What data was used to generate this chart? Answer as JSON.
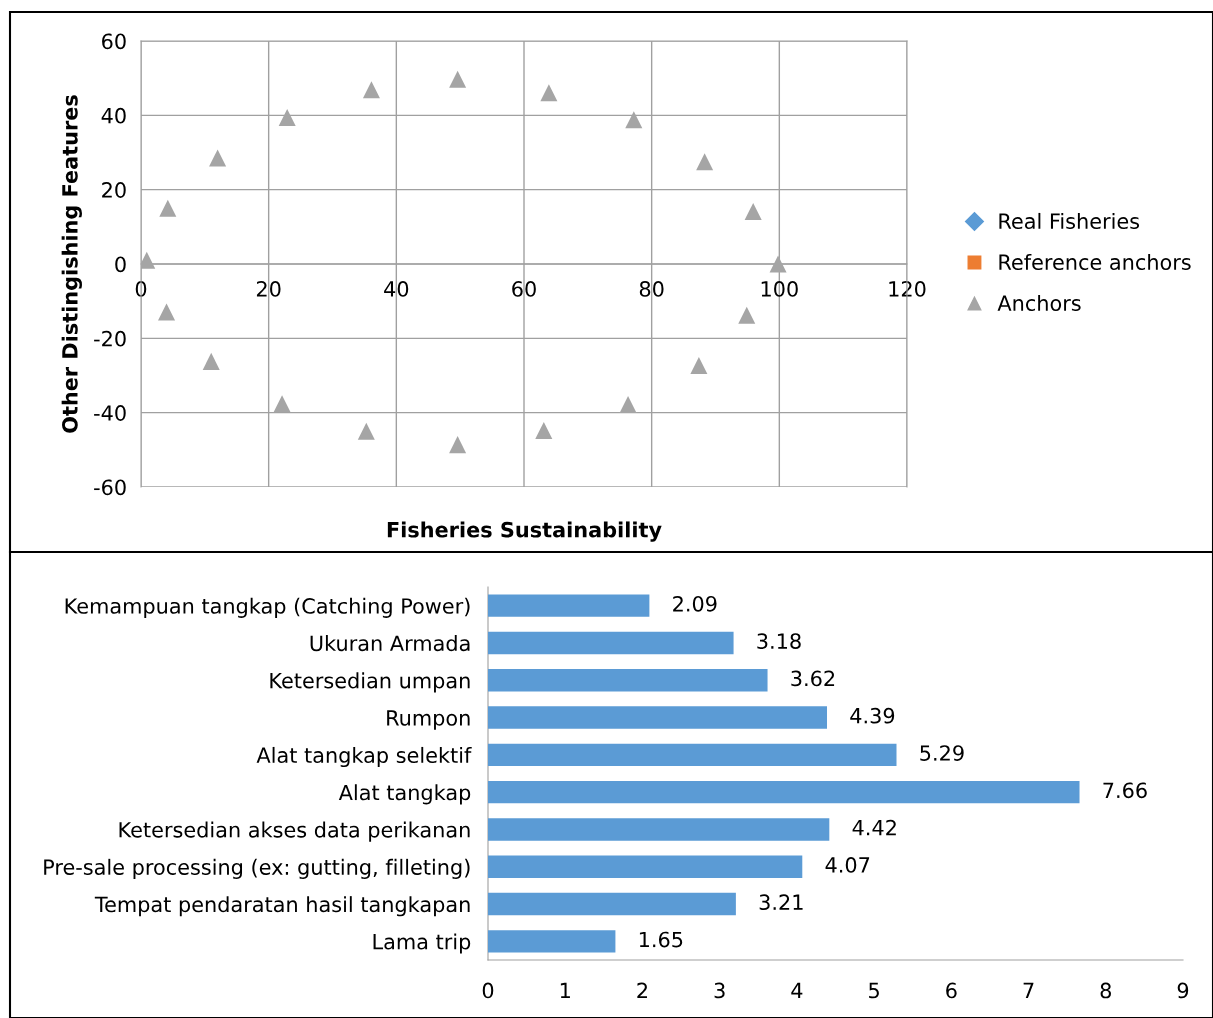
{
  "chart_data": [
    {
      "type": "scatter",
      "xlabel": "Fisheries Sustainability",
      "ylabel": "Other Distingishing Features",
      "xlim": [
        0,
        120
      ],
      "xticks": [
        0,
        20,
        40,
        60,
        80,
        100,
        120
      ],
      "ylim": [
        -60,
        60
      ],
      "yticks": [
        -60,
        -40,
        -20,
        0,
        20,
        40,
        60
      ],
      "grid": true,
      "legend": "right",
      "series": [
        {
          "name": "Real Fisheries",
          "color": "#5b9bd5",
          "marker": "diamond"
        },
        {
          "name": "Reference anchors",
          "color": "#ed7d31",
          "marker": "square"
        },
        {
          "name": "Anchors",
          "color": "#a5a5a5",
          "marker": "triangle",
          "x": [
            0.9,
            4.2,
            12.0,
            22.9,
            36.1,
            49.6,
            63.9,
            77.2,
            88.3,
            95.9,
            99.8,
            94.9,
            87.4,
            76.3,
            63.1,
            49.6,
            35.3,
            22.1,
            11.0,
            4.0
          ],
          "values": [
            1.0,
            15.0,
            28.5,
            39.4,
            46.9,
            49.7,
            46.1,
            38.8,
            27.5,
            14.1,
            0,
            -13.8,
            -27.3,
            -37.8,
            -44.8,
            -48.6,
            -45.0,
            -37.6,
            -26.2,
            -12.9
          ]
        }
      ]
    },
    {
      "type": "bar",
      "orientation": "horizontal",
      "categories": [
        "Kemampuan tangkap (Catching Power)",
        "Ukuran Armada",
        "Ketersedian umpan",
        "Rumpon",
        "Alat tangkap selektif",
        "Alat tangkap",
        "Ketersedian akses data perikanan",
        "Pre-sale processing (ex: gutting, filleting)",
        "Tempat pendaratan hasil tangkapan",
        "Lama trip"
      ],
      "values": [
        2.09,
        3.18,
        3.62,
        4.39,
        5.29,
        7.66,
        4.42,
        4.07,
        3.21,
        1.65
      ],
      "color": "#5b9bd5",
      "xlim": [
        0,
        9
      ],
      "xticks": [
        0,
        1,
        2,
        3,
        4,
        5,
        6,
        7,
        8,
        9
      ],
      "data_labels": true,
      "grid": false
    }
  ]
}
